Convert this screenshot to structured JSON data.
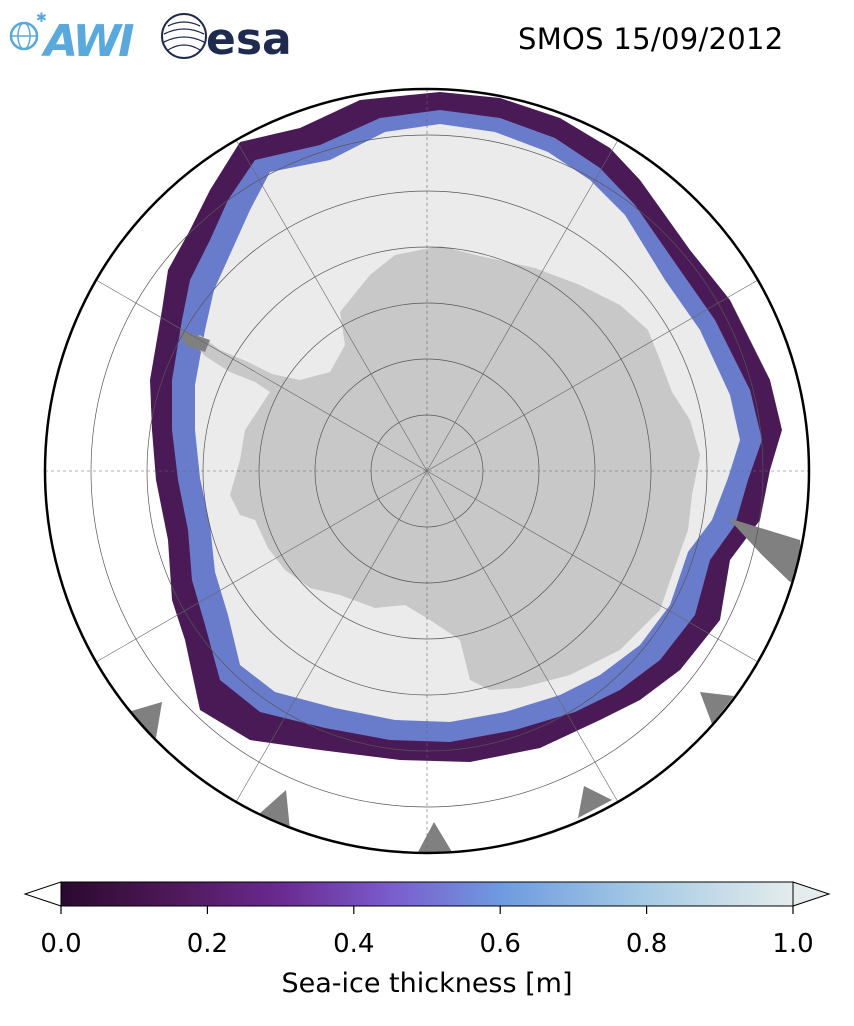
{
  "header": {
    "title": "SMOS 15/09/2012",
    "logos": [
      {
        "name": "awi",
        "text": "AWI",
        "color": "#5aa9dd"
      },
      {
        "name": "esa",
        "text": "esa",
        "color": "#1e2a4e"
      }
    ]
  },
  "map": {
    "projection": "south-polar-stereographic",
    "region": "Antarctica",
    "parameter": "sea-ice thickness",
    "colors": {
      "ocean": "#ffffff",
      "land": "#c8c8c8",
      "no_data": "#808080",
      "thick_ice": "#ebebeb"
    }
  },
  "colorbar": {
    "label": "Sea-ice thickness [m]",
    "min": 0.0,
    "max": 1.0,
    "extend": "both",
    "ticks": [
      {
        "value": 0.0,
        "label": "0.0"
      },
      {
        "value": 0.2,
        "label": "0.2"
      },
      {
        "value": 0.4,
        "label": "0.4"
      },
      {
        "value": 0.6,
        "label": "0.6"
      },
      {
        "value": 0.8,
        "label": "0.8"
      },
      {
        "value": 1.0,
        "label": "1.0"
      }
    ],
    "colormap": [
      {
        "value": 0.0,
        "color": "#2a0a2e"
      },
      {
        "value": 0.15,
        "color": "#4e1858"
      },
      {
        "value": 0.3,
        "color": "#6a2a90"
      },
      {
        "value": 0.45,
        "color": "#7a5ccc"
      },
      {
        "value": 0.6,
        "color": "#6e9ae0"
      },
      {
        "value": 0.8,
        "color": "#a6cbe4"
      },
      {
        "value": 1.0,
        "color": "#e4ecec"
      }
    ]
  }
}
